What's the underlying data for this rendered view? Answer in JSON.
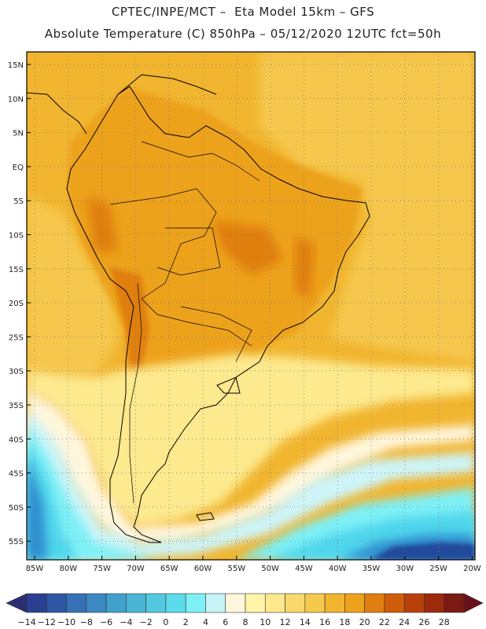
{
  "header": {
    "line1": "CPTEC/INPE/MCT –  Eta Model 15km – GFS",
    "line2": "Absolute Temperature (C) 850hPa – 05/12/2020 12UTC fct=50h"
  },
  "axes": {
    "lat_labels": [
      "15N",
      "10N",
      "5N",
      "EQ",
      "5S",
      "10S",
      "15S",
      "20S",
      "25S",
      "30S",
      "35S",
      "40S",
      "45S",
      "50S",
      "55S"
    ],
    "lon_labels": [
      "85W",
      "80W",
      "75W",
      "70W",
      "65W",
      "60W",
      "55W",
      "50W",
      "45W",
      "40W",
      "35W",
      "30W",
      "25W",
      "20W"
    ]
  },
  "colorbar": {
    "labels": [
      "-14",
      "-12",
      "-10",
      "-8",
      "-6",
      "-4",
      "-2",
      "0",
      "2",
      "4",
      "6",
      "8",
      "10",
      "12",
      "14",
      "16",
      "18",
      "20",
      "22",
      "24",
      "26",
      "28"
    ],
    "colors": [
      "#2a3f8f",
      "#2f56a3",
      "#3670b5",
      "#3b88c2",
      "#42a0cc",
      "#4ab6d6",
      "#52c9e0",
      "#5cdcea",
      "#7ef0f6",
      "#c8f4f8",
      "#fff6dc",
      "#fff4a8",
      "#fde98e",
      "#f9d86c",
      "#f5c84e",
      "#f1b52f",
      "#eda21a",
      "#e07f0f",
      "#cf5c0a",
      "#b8400a",
      "#9c2a0c",
      "#7a1a12"
    ],
    "arrow_low_color": "#2a2f74",
    "arrow_high_color": "#6a0f18"
  },
  "colors": {
    "cold_deep": "#22489a",
    "cold": "#2f8dd0",
    "cool": "#4fd6ec",
    "cyan": "#7ef0f6",
    "pale": "#cdf4f8",
    "cream": "#fff6dc",
    "yellow": "#fde98e",
    "gold": "#f5c84e",
    "orange": "#f1b52f",
    "deep_orange": "#eda21a",
    "hot": "#e07f0f",
    "hotter": "#cf5c0a"
  }
}
